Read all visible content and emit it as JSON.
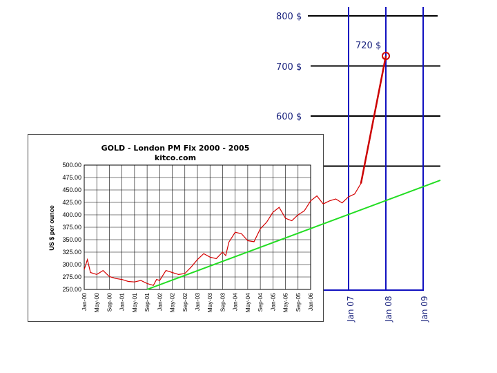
{
  "chart_data": [
    {
      "type": "line",
      "title": "GOLD - London PM Fix 2000 - 2005",
      "subtitle": "kitco.com",
      "ylabel": "US $ per ounce",
      "ylim": [
        250,
        500
      ],
      "yticks": [
        "500.00",
        "475.00",
        "450.00",
        "425.00",
        "400.00",
        "375.00",
        "350.00",
        "325.00",
        "300.00",
        "275.00",
        "250.00"
      ],
      "xticks": [
        "Jan-00",
        "May-00",
        "Sep-00",
        "Jan-01",
        "May-01",
        "Sep-01",
        "Jan-02",
        "May-02",
        "Sep-02",
        "Jan-03",
        "May-03",
        "Sep-03",
        "Jan-04",
        "May-04",
        "Sep-04",
        "Jan-05",
        "May-05",
        "Sep-05",
        "Jan-06"
      ],
      "grid": true,
      "series": [
        {
          "color": "#d40000",
          "points": [
            [
              0,
              290
            ],
            [
              1,
              310
            ],
            [
              2,
              284
            ],
            [
              4,
              280
            ],
            [
              6,
              288
            ],
            [
              8,
              276
            ],
            [
              10,
              272
            ],
            [
              12,
              270
            ],
            [
              14,
              266
            ],
            [
              16,
              265
            ],
            [
              18,
              268
            ],
            [
              20,
              262
            ],
            [
              22,
              258
            ],
            [
              23,
              270
            ],
            [
              24,
              268
            ],
            [
              26,
              288
            ],
            [
              28,
              284
            ],
            [
              30,
              280
            ],
            [
              32,
              282
            ],
            [
              34,
              295
            ],
            [
              36,
              310
            ],
            [
              38,
              322
            ],
            [
              40,
              315
            ],
            [
              42,
              312
            ],
            [
              44,
              325
            ],
            [
              45,
              318
            ],
            [
              46,
              345
            ],
            [
              48,
              365
            ],
            [
              50,
              362
            ],
            [
              52,
              348
            ],
            [
              54,
              346
            ],
            [
              56,
              372
            ],
            [
              58,
              385
            ],
            [
              60,
              405
            ],
            [
              62,
              415
            ],
            [
              64,
              393
            ],
            [
              66,
              388
            ],
            [
              68,
              400
            ],
            [
              70,
              408
            ],
            [
              72,
              428
            ],
            [
              74,
              438
            ],
            [
              76,
              422
            ],
            [
              78,
              428
            ],
            [
              80,
              432
            ],
            [
              82,
              424
            ],
            [
              84,
              436
            ],
            [
              86,
              442
            ],
            [
              88,
              463
            ]
          ]
        },
        {
          "color": "#22dd22",
          "points": [
            [
              20,
              250
            ],
            [
              88,
              410
            ]
          ]
        }
      ]
    },
    {
      "type": "line",
      "ylabels": [
        "800 $",
        "700 $",
        "600 $"
      ],
      "yvalues": [
        800,
        700,
        600,
        500
      ],
      "xticks": [
        "Jan 07",
        "Jan 08",
        "Jan 09"
      ],
      "annotation": "720 $",
      "projection": {
        "color": "#cc0000",
        "from_value": 463,
        "to_value": 720,
        "to_label": "Jan 08"
      },
      "trend_line": {
        "color": "#22dd22"
      },
      "gridline_color": "#000000",
      "year_line_color": "#1010c0"
    }
  ]
}
